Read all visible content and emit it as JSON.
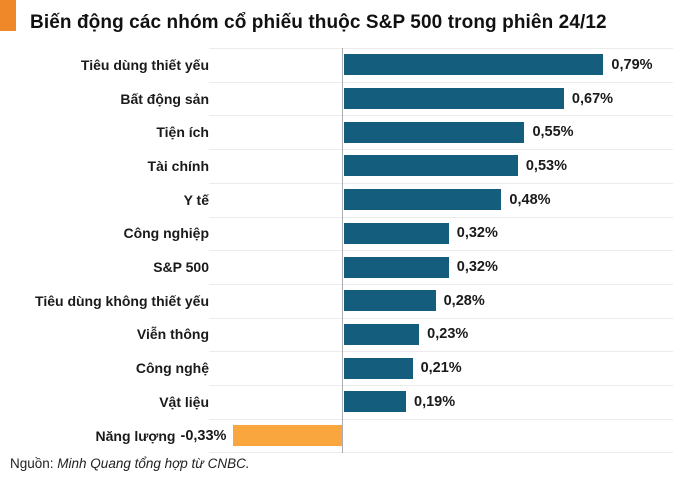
{
  "header": {
    "title": "Biến động các nhóm cổ phiếu thuộc S&P 500 trong phiên 24/12",
    "accent_color": "#ef8829"
  },
  "footer": {
    "source_prefix": "Nguồn:",
    "source_text": " Minh Quang tổng hợp từ CNBC."
  },
  "colors": {
    "positive_bar": "#155d7d",
    "negative_bar": "#f9a63e",
    "gridline": "#ebebeb",
    "axis_line": "#a8aeb3",
    "text": "#1a1a1a"
  },
  "chart_data": {
    "type": "bar",
    "orientation": "horizontal",
    "title": "Biến động các nhóm cổ phiếu thuộc S&P 500 trong phiên 24/12",
    "xlabel": "",
    "ylabel": "",
    "unit": "%",
    "grid": true,
    "legend": false,
    "xlim": [
      -0.4,
      1.0
    ],
    "categories": [
      "Tiêu dùng thiết yếu",
      "Bất động sản",
      "Tiện ích",
      "Tài chính",
      "Y tế",
      "Công nghiệp",
      "S&P 500",
      "Tiêu dùng không thiết yếu",
      "Viễn thông",
      "Công nghệ",
      "Vật liệu",
      "Năng lượng"
    ],
    "values": [
      0.79,
      0.67,
      0.55,
      0.53,
      0.48,
      0.32,
      0.32,
      0.28,
      0.23,
      0.21,
      0.19,
      -0.33
    ],
    "value_labels": [
      "0,79%",
      "0,67%",
      "0,55%",
      "0,53%",
      "0,48%",
      "0,32%",
      "0,32%",
      "0,28%",
      "0,23%",
      "0,21%",
      "0,19%",
      "-0,33%"
    ]
  }
}
